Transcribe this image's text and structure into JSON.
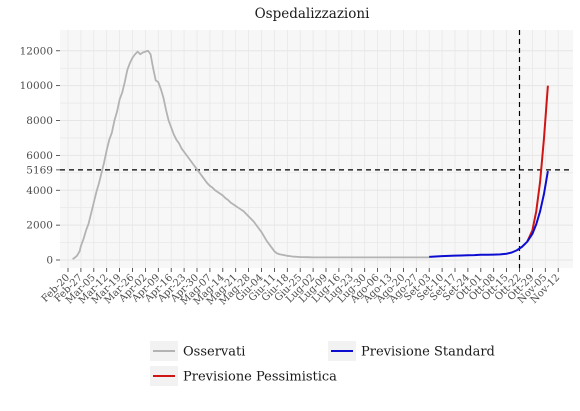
{
  "chart_data": {
    "type": "line",
    "title": "Ospedalizzazioni",
    "xlabel": "",
    "ylabel": "",
    "ylim": [
      -500,
      12700
    ],
    "yticks": [
      0,
      2000,
      4000,
      5169,
      6000,
      8000,
      10000,
      12000
    ],
    "xtick_labels": [
      "Feb-20",
      "Feb-27",
      "Mar-05",
      "Mar-12",
      "Mar-19",
      "Mar-26",
      "Apr-02",
      "Apr-09",
      "Apr-16",
      "Apr-23",
      "Apr-30",
      "Mag-07",
      "Mag-14",
      "Mag-21",
      "Mag-28",
      "Giu-04",
      "Giu-11",
      "Giu-18",
      "Giu-25",
      "Lug-02",
      "Lug-09",
      "Lug-16",
      "Lug-23",
      "Lug-30",
      "Ago-06",
      "Ago-13",
      "Ago-20",
      "Ago-27",
      "Set-03",
      "Set-10",
      "Set-17",
      "Set-24",
      "Ott-01",
      "Ott-08",
      "Ott-15",
      "Ott-22",
      "Ott-29",
      "Nov-05",
      "Nov-12"
    ],
    "threshold_y": 5169,
    "vline_x_index": 35,
    "grid": true,
    "legend_position": "bottom",
    "series": [
      {
        "name": "Osservati",
        "color": "#b3b3b3",
        "x": [
          0.36,
          0.5,
          0.7,
          0.9,
          1.0,
          1.2,
          1.4,
          1.6,
          1.8,
          2.0,
          2.2,
          2.4,
          2.6,
          2.8,
          3.0,
          3.2,
          3.4,
          3.6,
          3.8,
          4.0,
          4.2,
          4.4,
          4.6,
          4.8,
          5.0,
          5.2,
          5.4,
          5.6,
          5.8,
          6.0,
          6.2,
          6.4,
          6.6,
          6.8,
          7.0,
          7.2,
          7.4,
          7.6,
          7.8,
          8.0,
          8.2,
          8.4,
          8.6,
          8.8,
          9.0,
          9.2,
          9.4,
          9.6,
          9.8,
          10.0,
          10.2,
          10.4,
          10.6,
          10.8,
          11.0,
          11.2,
          11.4,
          11.6,
          11.8,
          12.0,
          12.2,
          12.4,
          12.6,
          12.8,
          13.0,
          13.2,
          13.4,
          13.6,
          13.8,
          14.0,
          14.2,
          14.4,
          14.6,
          14.8,
          15.0,
          15.2,
          15.4,
          15.6,
          15.8,
          16.0,
          16.2,
          16.4,
          16.6,
          16.8,
          17.0,
          17.2,
          17.4,
          17.6,
          17.8,
          18.0,
          18.2,
          18.4,
          18.6,
          18.8,
          19.0,
          19.3,
          19.6,
          20.0,
          21.0,
          22.0,
          23.0,
          24.0,
          25.0,
          26.0,
          27.0,
          28.0
        ],
        "y": [
          50,
          120,
          250,
          500,
          800,
          1200,
          1700,
          2100,
          2700,
          3300,
          3900,
          4400,
          5000,
          5600,
          6300,
          6900,
          7300,
          8000,
          8500,
          9200,
          9600,
          10200,
          10900,
          11300,
          11600,
          11800,
          11950,
          11800,
          11900,
          11950,
          12000,
          11800,
          11000,
          10300,
          10200,
          9800,
          9300,
          8600,
          8000,
          7600,
          7200,
          6900,
          6700,
          6400,
          6200,
          6000,
          5800,
          5600,
          5400,
          5200,
          5000,
          4800,
          4600,
          4400,
          4250,
          4150,
          4000,
          3900,
          3800,
          3700,
          3550,
          3450,
          3300,
          3200,
          3100,
          3000,
          2900,
          2800,
          2650,
          2500,
          2350,
          2200,
          2000,
          1800,
          1600,
          1350,
          1100,
          900,
          700,
          500,
          380,
          330,
          300,
          270,
          240,
          220,
          200,
          190,
          180,
          170,
          165,
          160,
          160,
          155,
          150,
          150,
          150,
          150,
          150,
          150,
          150,
          150,
          150,
          150,
          150,
          150
        ]
      },
      {
        "name": "Previsione Standard",
        "color": "#0d0dd1",
        "x": [
          28.0,
          28.5,
          29.0,
          29.5,
          30.0,
          30.5,
          31.0,
          31.5,
          32.0,
          32.5,
          33.0,
          33.5,
          34.0,
          34.4,
          34.8,
          35.2,
          35.6,
          36.0,
          36.3,
          36.6,
          36.9,
          37.2
        ],
        "y": [
          180,
          200,
          220,
          240,
          250,
          260,
          270,
          280,
          300,
          300,
          310,
          320,
          360,
          430,
          560,
          760,
          1050,
          1500,
          2050,
          2800,
          3800,
          5100
        ]
      },
      {
        "name": "Previsione Pessimistica",
        "color": "#d01515",
        "x": [
          35.6,
          36.0,
          36.3,
          36.6,
          36.9,
          37.2
        ],
        "y": [
          1050,
          1700,
          2800,
          4500,
          7000,
          10000
        ]
      }
    ]
  }
}
